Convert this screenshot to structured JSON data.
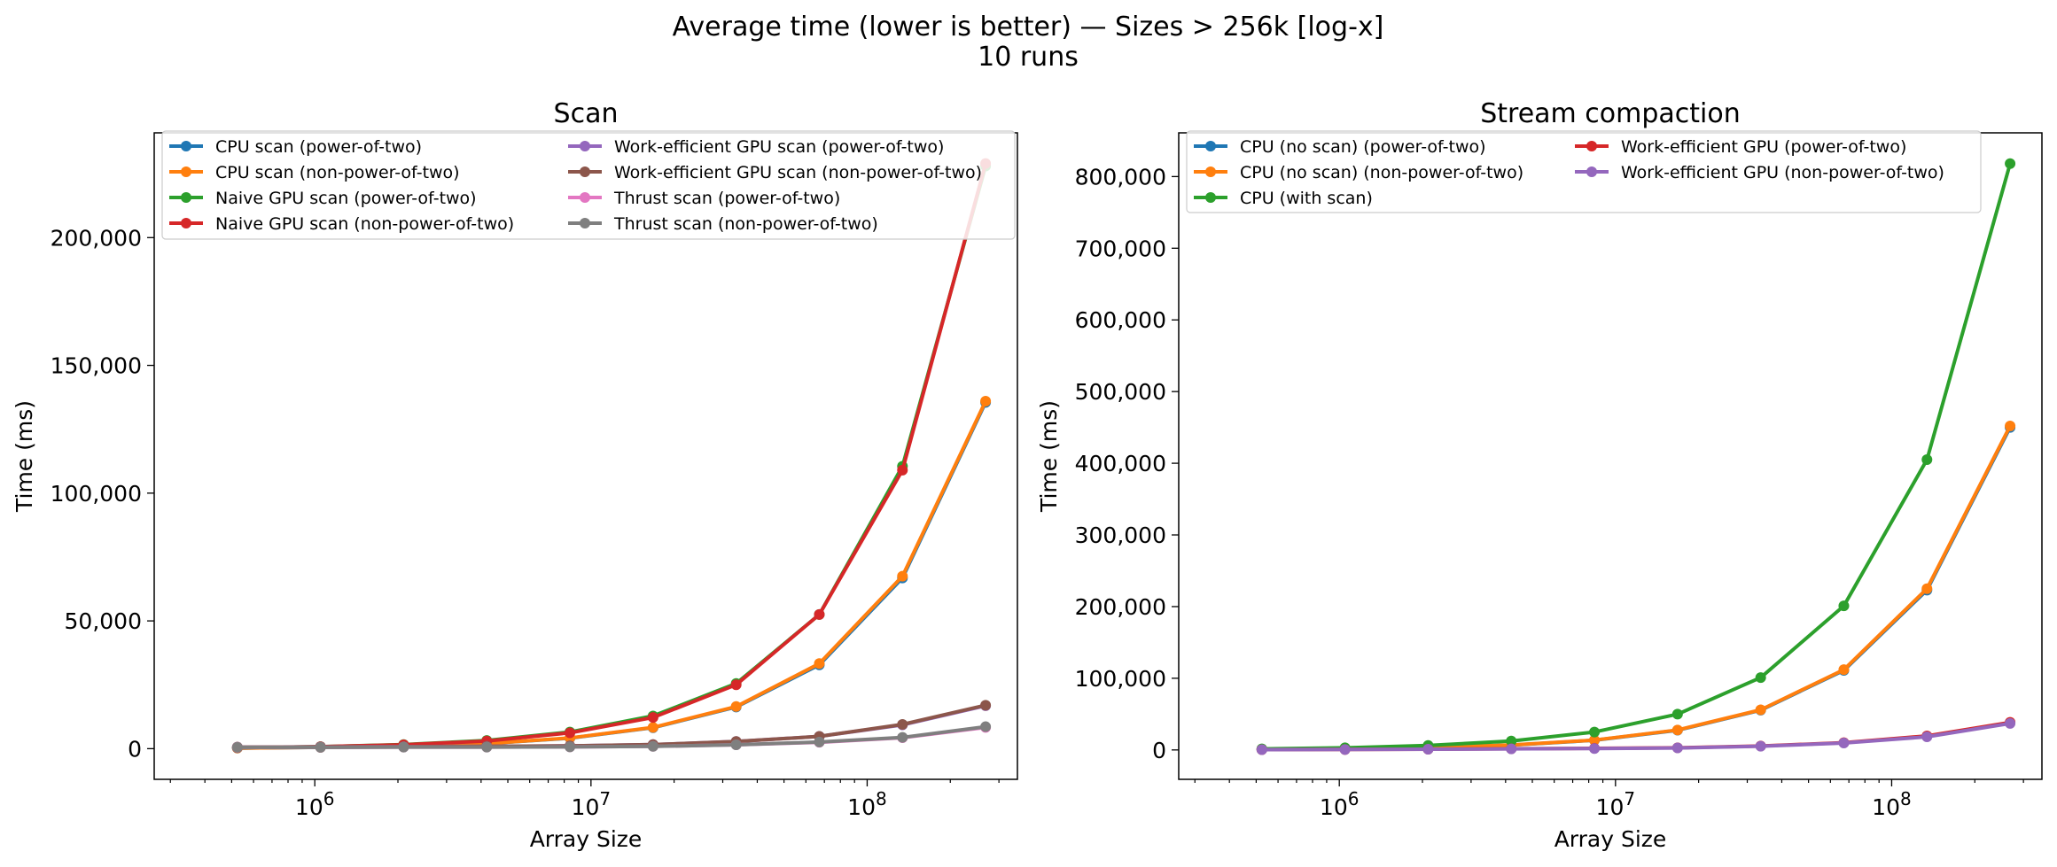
{
  "figure": {
    "title_line1": "Average time (lower is better) — Sizes > 256k [log-x]",
    "title_line2": "10 runs"
  },
  "chart_data": [
    {
      "type": "line",
      "title": "Scan",
      "xlabel": "Array Size",
      "ylabel": "Time (ms)",
      "xscale": "log",
      "xlim": [
        262144,
        350000000
      ],
      "ylim": [
        -12000,
        241000
      ],
      "x_ticks": [
        {
          "value": 1000000,
          "base": "10",
          "exp": "6"
        },
        {
          "value": 10000000,
          "base": "10",
          "exp": "7"
        },
        {
          "value": 100000000,
          "base": "10",
          "exp": "8"
        }
      ],
      "y_ticks": [
        {
          "value": 0,
          "label": "0"
        },
        {
          "value": 50000,
          "label": "50,000"
        },
        {
          "value": 100000,
          "label": "100,000"
        },
        {
          "value": 150000,
          "label": "150,000"
        },
        {
          "value": 200000,
          "label": "200,000"
        }
      ],
      "grid": false,
      "legend": "top, two columns",
      "x": [
        524288,
        1048576,
        2097152,
        4194304,
        8388608,
        16777216,
        33554432,
        67108864,
        134217728,
        268435456
      ],
      "series": [
        {
          "name": "CPU scan (power-of-two)",
          "color": "#1f77b4",
          "values": [
            250,
            500,
            1000,
            2000,
            4100,
            8200,
            16300,
            32800,
            66800,
            135500
          ]
        },
        {
          "name": "CPU scan (non-power-of-two)",
          "color": "#ff7f0e",
          "values": [
            250,
            500,
            1000,
            2000,
            4200,
            8300,
            16500,
            33300,
            67500,
            136000
          ]
        },
        {
          "name": "Naive GPU scan (power-of-two)",
          "color": "#2ca02c",
          "values": [
            400,
            800,
            1600,
            3200,
            6500,
            12800,
            25500,
            52500,
            110500,
            228000
          ]
        },
        {
          "name": "Naive GPU scan (non-power-of-two)",
          "color": "#d62728",
          "values": [
            400,
            800,
            1500,
            3000,
            6200,
            12200,
            25000,
            52500,
            109000,
            229000
          ]
        },
        {
          "name": "Work-efficient GPU scan (power-of-two)",
          "color": "#9467bd",
          "values": [
            600,
            700,
            800,
            900,
            1100,
            1600,
            2800,
            4800,
            9300,
            16800
          ]
        },
        {
          "name": "Work-efficient GPU scan (non-power-of-two)",
          "color": "#8c564b",
          "values": [
            600,
            700,
            800,
            900,
            1100,
            1600,
            2800,
            4800,
            9500,
            17000
          ]
        },
        {
          "name": "Thrust scan (power-of-two)",
          "color": "#e377c2",
          "values": [
            500,
            500,
            600,
            600,
            700,
            900,
            1500,
            2500,
            4300,
            8300
          ]
        },
        {
          "name": "Thrust scan (non-power-of-two)",
          "color": "#7f7f7f",
          "values": [
            500,
            500,
            600,
            600,
            700,
            900,
            1500,
            2600,
            4400,
            8600
          ]
        }
      ]
    },
    {
      "type": "line",
      "title": "Stream compaction",
      "xlabel": "Array Size",
      "ylabel": "Time (ms)",
      "xscale": "log",
      "xlim": [
        262144,
        350000000
      ],
      "ylim": [
        -41000,
        861000
      ],
      "x_ticks": [
        {
          "value": 1000000,
          "base": "10",
          "exp": "6"
        },
        {
          "value": 10000000,
          "base": "10",
          "exp": "7"
        },
        {
          "value": 100000000,
          "base": "10",
          "exp": "8"
        }
      ],
      "y_ticks": [
        {
          "value": 0,
          "label": "0"
        },
        {
          "value": 100000,
          "label": "100,000"
        },
        {
          "value": 200000,
          "label": "200,000"
        },
        {
          "value": 300000,
          "label": "300,000"
        },
        {
          "value": 400000,
          "label": "400,000"
        },
        {
          "value": 500000,
          "label": "500,000"
        },
        {
          "value": 600000,
          "label": "600,000"
        },
        {
          "value": 700000,
          "label": "700,000"
        },
        {
          "value": 800000,
          "label": "800,000"
        }
      ],
      "grid": false,
      "legend": "top, two columns",
      "x": [
        524288,
        1048576,
        2097152,
        4194304,
        8388608,
        16777216,
        33554432,
        67108864,
        134217728,
        268435456
      ],
      "series": [
        {
          "name": "CPU (no scan) (power-of-two)",
          "color": "#1f77b4",
          "values": [
            800,
            1600,
            3300,
            6700,
            13500,
            27500,
            55500,
            111000,
            223000,
            450000
          ]
        },
        {
          "name": "CPU (no scan) (non-power-of-two)",
          "color": "#ff7f0e",
          "values": [
            800,
            1700,
            3400,
            6800,
            13700,
            27800,
            56000,
            112000,
            225000,
            452000
          ]
        },
        {
          "name": "CPU (with scan)",
          "color": "#2ca02c",
          "values": [
            1500,
            3000,
            6200,
            12500,
            25000,
            50000,
            101000,
            201000,
            405000,
            818000
          ]
        },
        {
          "name": "Work-efficient GPU (power-of-two)",
          "color": "#d62728",
          "values": [
            400,
            600,
            1000,
            1600,
            2200,
            3000,
            5500,
            10200,
            19500,
            38500
          ]
        },
        {
          "name": "Work-efficient GPU (non-power-of-two)",
          "color": "#9467bd",
          "values": [
            400,
            600,
            1000,
            1500,
            2000,
            2800,
            5200,
            9700,
            18300,
            37000
          ]
        }
      ]
    }
  ]
}
